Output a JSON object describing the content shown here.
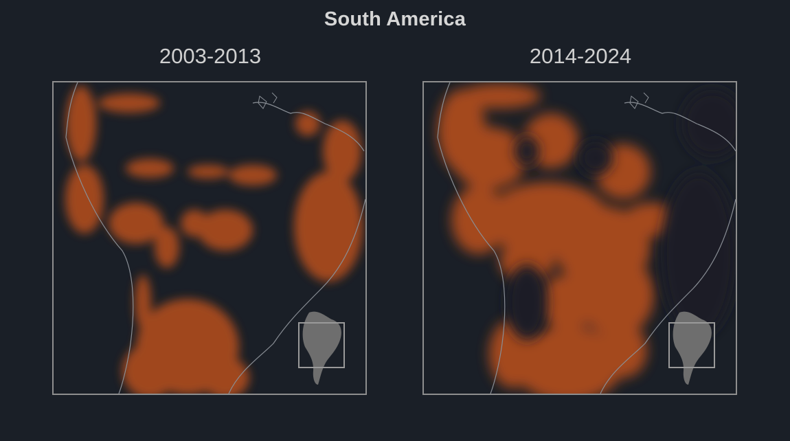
{
  "title": "South America",
  "panels": [
    {
      "id": "left",
      "period": "2003-2013"
    },
    {
      "id": "right",
      "period": "2014-2024"
    }
  ],
  "colors": {
    "background": "#1a1f27",
    "heat": "#b8501f",
    "coastline": "#8a8f96",
    "frame": "#8e8e8e",
    "inset_land": "#6e6e6e"
  }
}
